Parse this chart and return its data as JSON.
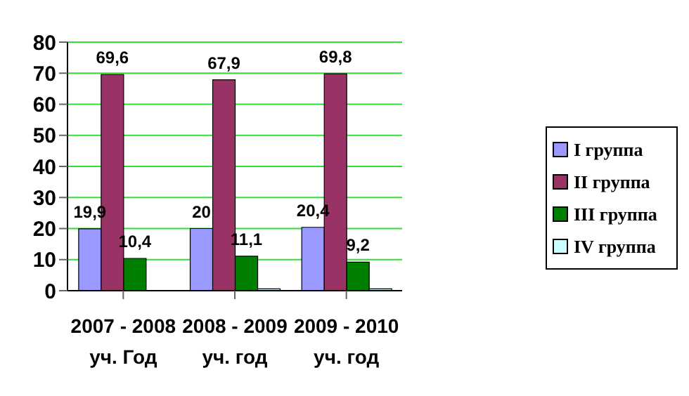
{
  "chart_data": {
    "type": "bar",
    "categories": [
      "2007 - 2008\nуч. Год",
      "2008 - 2009\nуч. год",
      "2009 - 2010\nуч. год"
    ],
    "series": [
      {
        "name": "I группа",
        "color": "#9999ff",
        "values": [
          19.9,
          20,
          20.4
        ],
        "value_labels": [
          "19,9",
          "20",
          "20,4"
        ]
      },
      {
        "name": "II группа",
        "color": "#993366",
        "values": [
          69.6,
          67.9,
          69.8
        ],
        "value_labels": [
          "69,6",
          "67,9",
          "69,8"
        ]
      },
      {
        "name": "III группа",
        "color": "#008000",
        "values": [
          10.4,
          11.1,
          9.2
        ],
        "value_labels": [
          "10,4",
          "11,1",
          "9,2"
        ]
      },
      {
        "name": "IV группа",
        "color": "#ccffff",
        "values": [
          0,
          0.6,
          0.6
        ]
      }
    ],
    "ylim": [
      0,
      80
    ],
    "yticks": [
      0,
      10,
      20,
      30,
      40,
      50,
      60,
      70,
      80
    ],
    "grid": "y",
    "legend": "right"
  }
}
